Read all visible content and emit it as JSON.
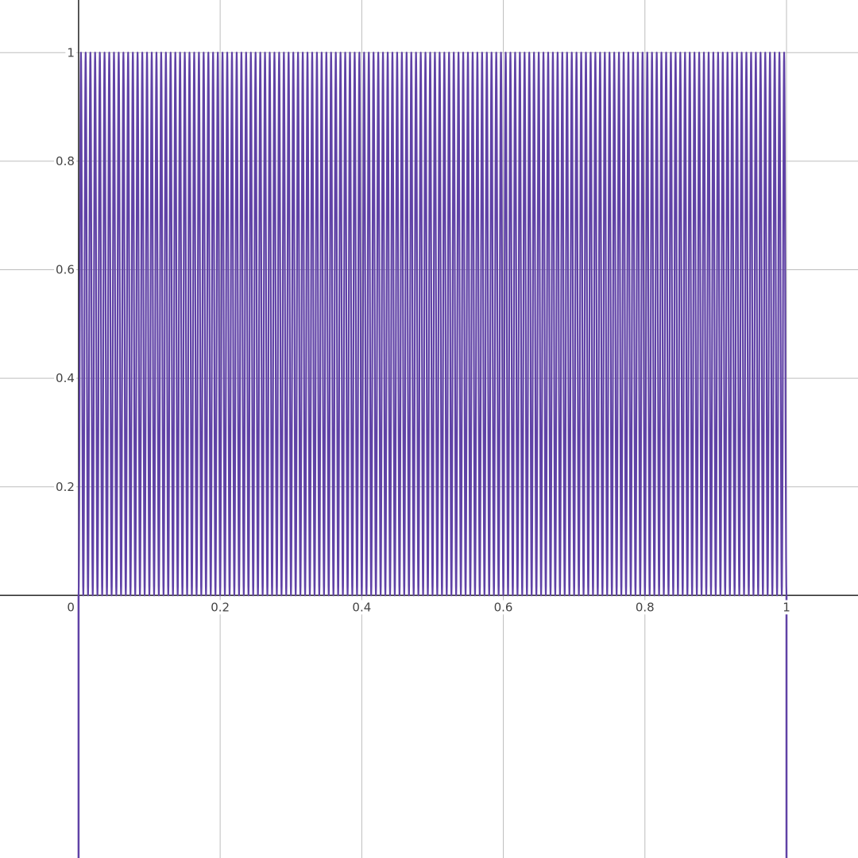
{
  "chart_data": {
    "type": "line",
    "title": "",
    "xlabel": "",
    "ylabel": "",
    "xlim": [
      -0.111,
      1.101
    ],
    "ylim": [
      -0.484,
      1.097
    ],
    "grid": true,
    "x_ticks": [
      {
        "value": 0.2,
        "label": "0.2"
      },
      {
        "value": 0.4,
        "label": "0.4"
      },
      {
        "value": 0.6,
        "label": "0.6"
      },
      {
        "value": 0.8,
        "label": "0.8"
      },
      {
        "value": 1,
        "label": "1"
      }
    ],
    "y_ticks": [
      {
        "value": 0.2,
        "label": "0.2"
      },
      {
        "value": 0.4,
        "label": "0.4"
      },
      {
        "value": 0.6,
        "label": "0.6"
      },
      {
        "value": 0.8,
        "label": "0.8"
      },
      {
        "value": 1,
        "label": "1"
      }
    ],
    "origin_label": "0",
    "series": [
      {
        "color": "#6042a6",
        "x_range": [
          0,
          1
        ],
        "y_range": [
          0,
          1
        ],
        "oscillations": 150
      }
    ]
  }
}
